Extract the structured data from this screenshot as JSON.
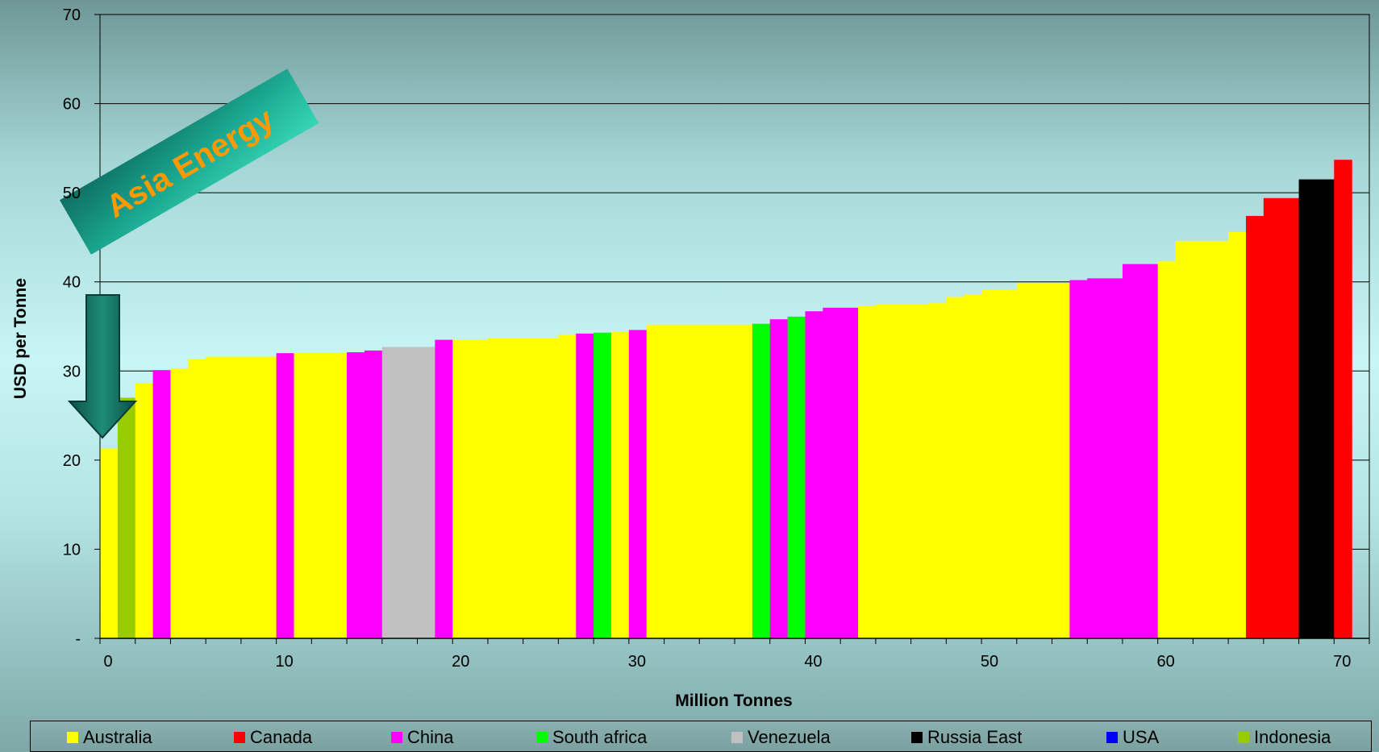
{
  "chart_data": {
    "type": "bar",
    "subtype": "cost-curve",
    "xlabel": "Million Tonnes",
    "ylabel": "USD per Tonne",
    "xlim": [
      0,
      72
    ],
    "ylim": [
      0,
      70
    ],
    "x_ticks": [
      "0",
      "10",
      "20",
      "30",
      "40",
      "50",
      "60",
      "70"
    ],
    "y_ticks": [
      "-",
      "10",
      "20",
      "30",
      "40",
      "50",
      "60",
      "70"
    ],
    "grid": "horizontal",
    "legend_position": "bottom",
    "annotation": "Asia Energy",
    "series": [
      {
        "name": "Australia",
        "color": "#ffff00"
      },
      {
        "name": "Canada",
        "color": "#ff0000"
      },
      {
        "name": "China",
        "color": "#ff00ff"
      },
      {
        "name": "South africa",
        "color": "#00ff00"
      },
      {
        "name": "Venezuela",
        "color": "#c0c0c0"
      },
      {
        "name": "Russia East",
        "color": "#000000"
      },
      {
        "name": "USA",
        "color": "#0000ff"
      },
      {
        "name": "Indonesia",
        "color": "#99cc00"
      }
    ],
    "segments": [
      {
        "x0": 0,
        "x1": 1,
        "y": 21.3,
        "country": "Australia"
      },
      {
        "x0": 1,
        "x1": 2,
        "y": 27.0,
        "country": "Indonesia"
      },
      {
        "x0": 2,
        "x1": 3,
        "y": 28.6,
        "country": "Australia"
      },
      {
        "x0": 3,
        "x1": 4,
        "y": 30.1,
        "country": "China"
      },
      {
        "x0": 4,
        "x1": 5,
        "y": 30.3,
        "country": "Australia"
      },
      {
        "x0": 5,
        "x1": 6,
        "y": 31.3,
        "country": "Australia"
      },
      {
        "x0": 6,
        "x1": 10,
        "y": 31.6,
        "country": "Australia"
      },
      {
        "x0": 10,
        "x1": 11,
        "y": 32.0,
        "country": "China"
      },
      {
        "x0": 11,
        "x1": 14,
        "y": 32.0,
        "country": "Australia"
      },
      {
        "x0": 14,
        "x1": 15,
        "y": 32.1,
        "country": "China"
      },
      {
        "x0": 15,
        "x1": 16,
        "y": 32.3,
        "country": "China"
      },
      {
        "x0": 16,
        "x1": 19,
        "y": 32.7,
        "country": "Venezuela"
      },
      {
        "x0": 19,
        "x1": 20,
        "y": 33.5,
        "country": "China"
      },
      {
        "x0": 20,
        "x1": 22,
        "y": 33.5,
        "country": "Australia"
      },
      {
        "x0": 22,
        "x1": 26,
        "y": 33.7,
        "country": "Australia"
      },
      {
        "x0": 26,
        "x1": 27,
        "y": 34.1,
        "country": "Australia"
      },
      {
        "x0": 27,
        "x1": 28,
        "y": 34.2,
        "country": "China"
      },
      {
        "x0": 28,
        "x1": 29,
        "y": 34.3,
        "country": "South africa"
      },
      {
        "x0": 29,
        "x1": 30,
        "y": 34.4,
        "country": "Australia"
      },
      {
        "x0": 30,
        "x1": 31,
        "y": 34.6,
        "country": "China"
      },
      {
        "x0": 31,
        "x1": 37,
        "y": 35.2,
        "country": "Australia"
      },
      {
        "x0": 37,
        "x1": 38,
        "y": 35.3,
        "country": "South africa"
      },
      {
        "x0": 38,
        "x1": 39,
        "y": 35.8,
        "country": "China"
      },
      {
        "x0": 39,
        "x1": 40,
        "y": 36.1,
        "country": "South africa"
      },
      {
        "x0": 40,
        "x1": 41,
        "y": 36.7,
        "country": "China"
      },
      {
        "x0": 41,
        "x1": 43,
        "y": 37.1,
        "country": "China"
      },
      {
        "x0": 43,
        "x1": 44,
        "y": 37.3,
        "country": "Australia"
      },
      {
        "x0": 44,
        "x1": 47,
        "y": 37.5,
        "country": "Australia"
      },
      {
        "x0": 47,
        "x1": 48,
        "y": 37.6,
        "country": "Australia"
      },
      {
        "x0": 48,
        "x1": 49,
        "y": 38.3,
        "country": "Australia"
      },
      {
        "x0": 49,
        "x1": 50,
        "y": 38.6,
        "country": "Australia"
      },
      {
        "x0": 50,
        "x1": 52,
        "y": 39.1,
        "country": "Australia"
      },
      {
        "x0": 52,
        "x1": 55,
        "y": 39.9,
        "country": "Australia"
      },
      {
        "x0": 55,
        "x1": 56,
        "y": 40.2,
        "country": "China"
      },
      {
        "x0": 56,
        "x1": 58,
        "y": 40.4,
        "country": "China"
      },
      {
        "x0": 58,
        "x1": 60,
        "y": 42.0,
        "country": "China"
      },
      {
        "x0": 60,
        "x1": 61,
        "y": 42.3,
        "country": "Australia"
      },
      {
        "x0": 61,
        "x1": 64,
        "y": 44.6,
        "country": "Australia"
      },
      {
        "x0": 64,
        "x1": 65,
        "y": 45.6,
        "country": "Australia"
      },
      {
        "x0": 65,
        "x1": 66,
        "y": 47.4,
        "country": "Canada"
      },
      {
        "x0": 66,
        "x1": 68,
        "y": 49.4,
        "country": "Canada"
      },
      {
        "x0": 68,
        "x1": 70,
        "y": 51.5,
        "country": "Russia East"
      },
      {
        "x0": 70,
        "x1": 71,
        "y": 53.7,
        "country": "Canada"
      }
    ]
  }
}
